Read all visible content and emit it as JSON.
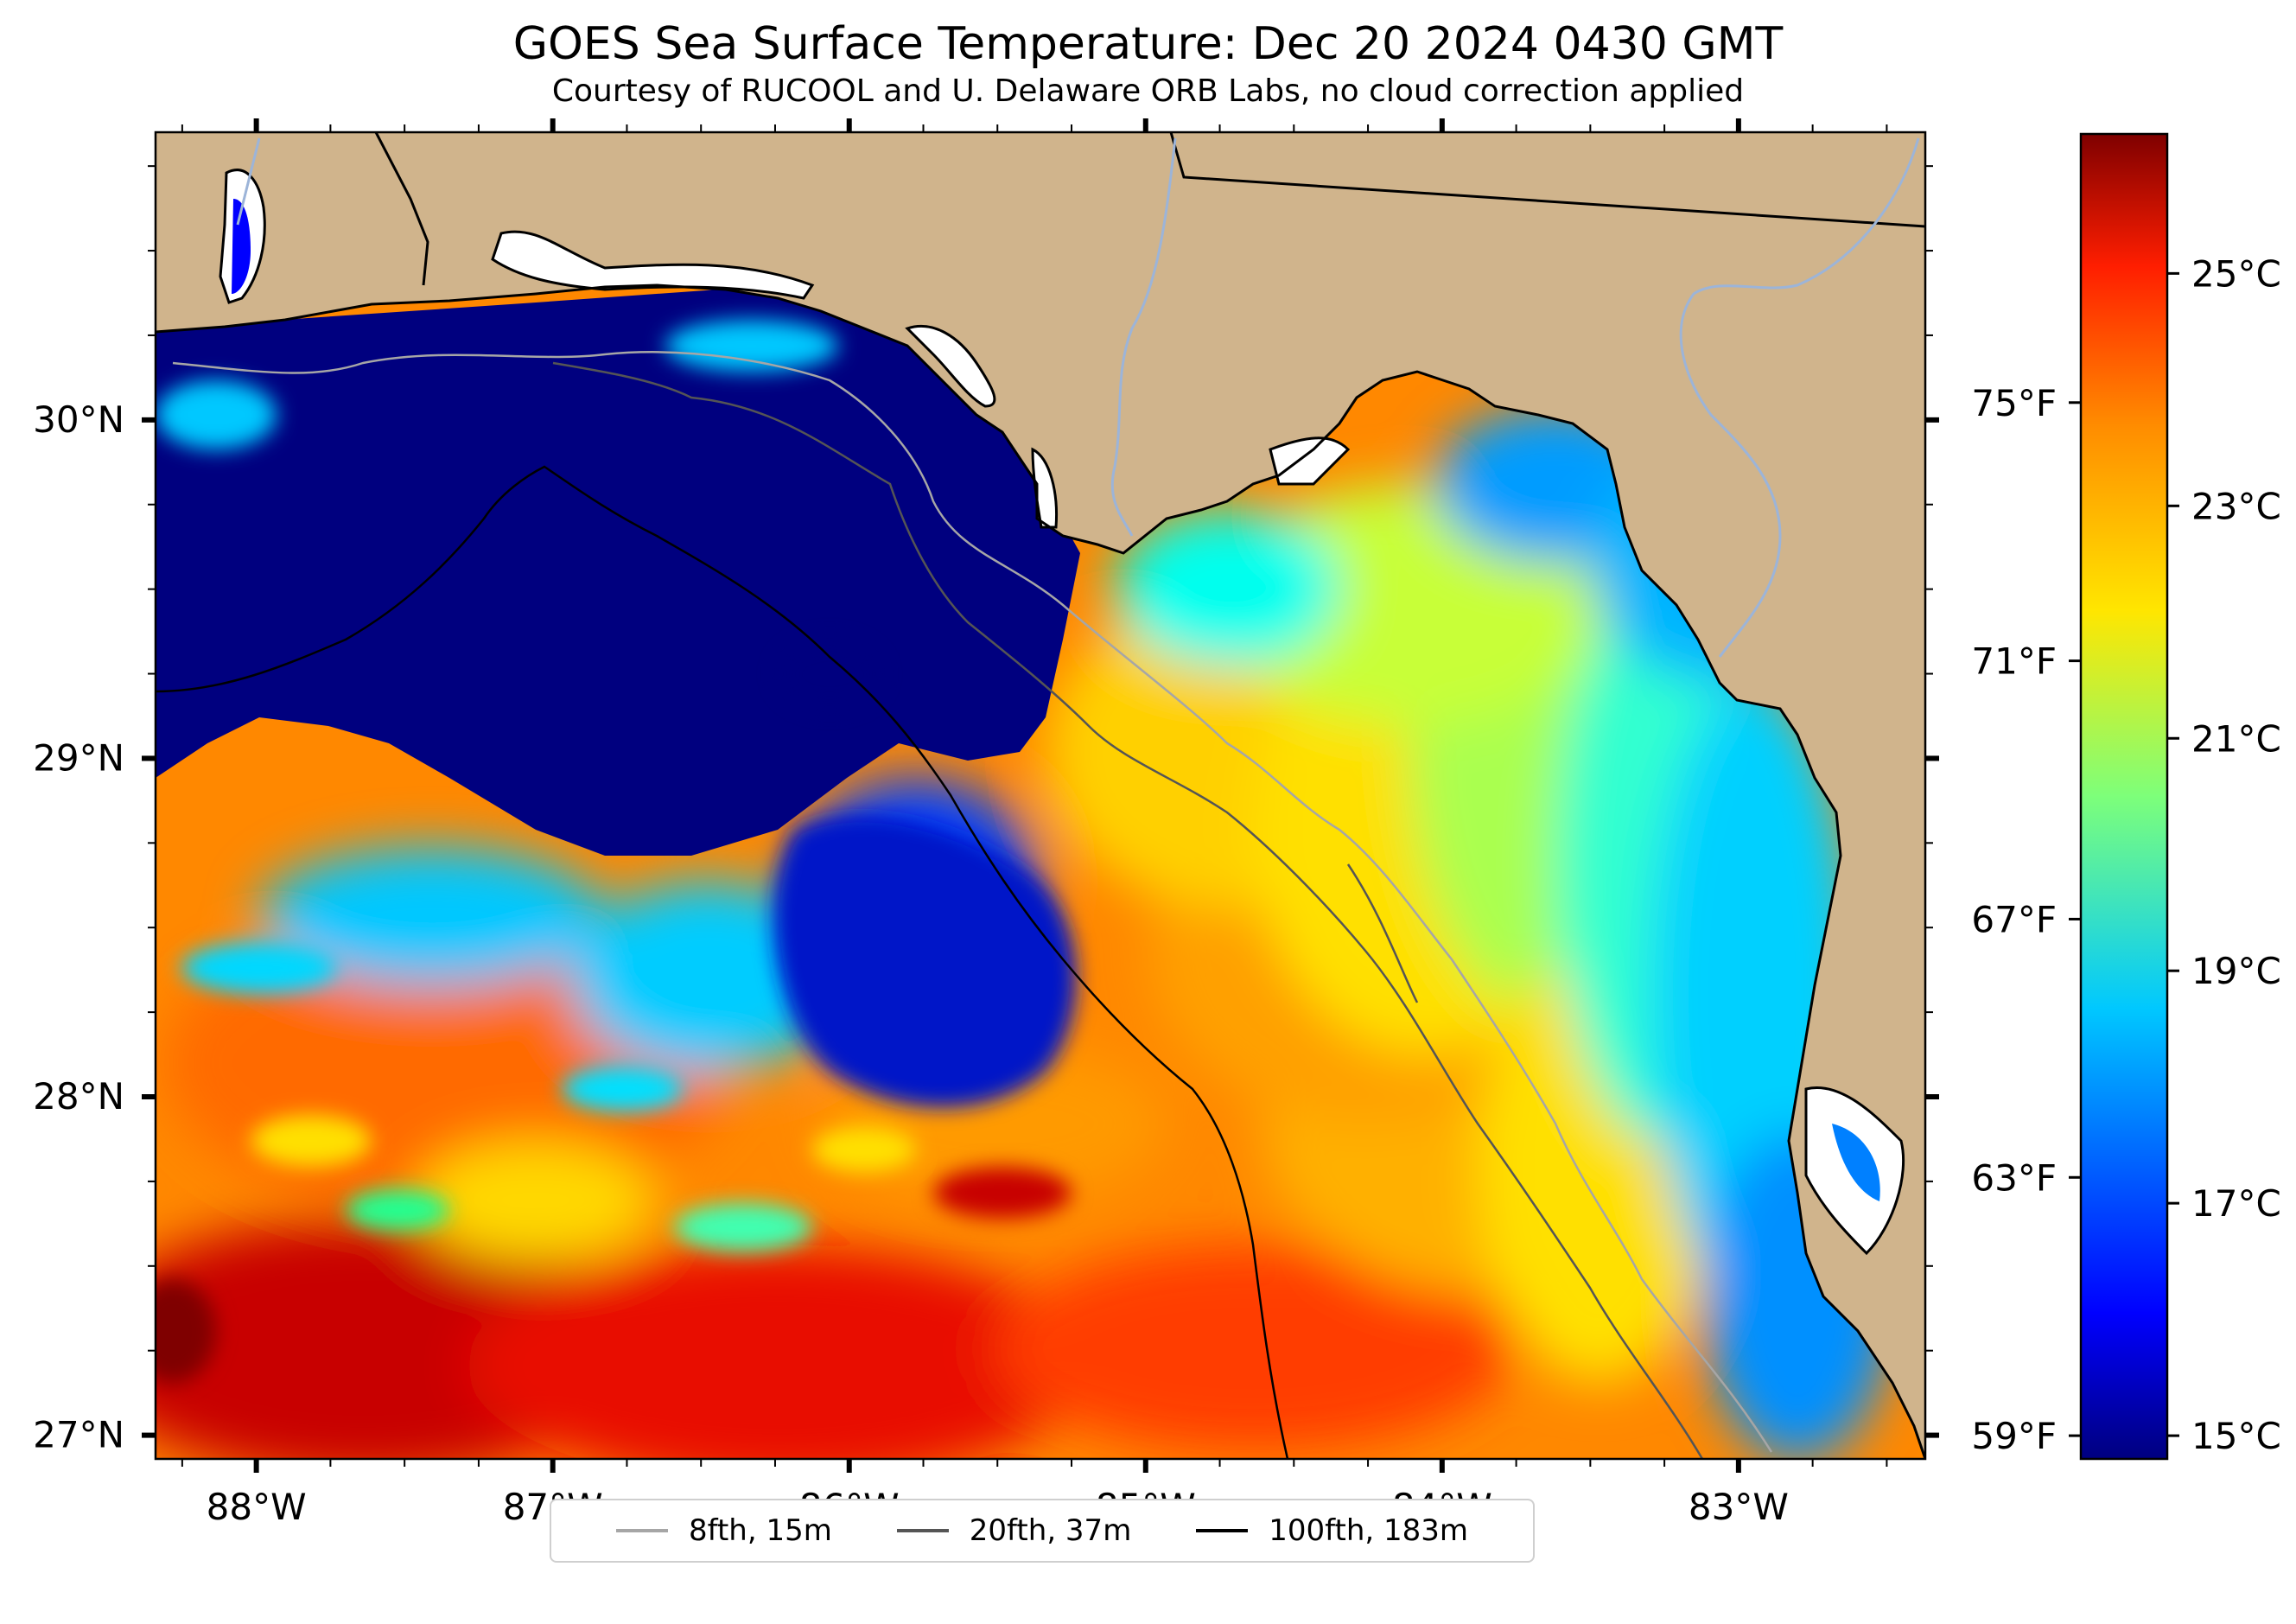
{
  "title": "GOES Sea Surface Temperature: Dec 20 2024 0430 GMT",
  "subtitle": "Courtesy of RUCOOL and U. Delaware ORB Labs, no cloud correction applied",
  "map": {
    "region": "Northeastern Gulf of Mexico (Florida Panhandle / Big Bend)",
    "lon_range": [
      -88.34,
      -82.37
    ],
    "lat_range": [
      26.93,
      30.85
    ],
    "lon_ticks": [
      -88,
      -87,
      -86,
      -85,
      -84,
      -83
    ],
    "lon_tick_labels": [
      "88°W",
      "87°W",
      "86°W",
      "85°W",
      "84°W",
      "83°W"
    ],
    "lat_ticks": [
      27,
      28,
      29,
      30
    ],
    "lat_tick_labels": [
      "27°N",
      "28°N",
      "29°N",
      "30°N"
    ],
    "land_color": "#d0b48c",
    "no_data_color": "#ffffff",
    "coastline_color": "#000000",
    "river_color": "#9cb4d8"
  },
  "colorbar": {
    "colormap": "jet",
    "range_c": [
      14.8,
      26.2
    ],
    "c_ticks": [
      15,
      17,
      19,
      21,
      23,
      25
    ],
    "c_labels": [
      "15°C",
      "17°C",
      "19°C",
      "21°C",
      "23°C",
      "25°C"
    ],
    "f_ticks": [
      59,
      63,
      67,
      71,
      75
    ],
    "f_labels": [
      "59°F",
      "63°F",
      "67°F",
      "71°F",
      "75°F"
    ]
  },
  "legend": {
    "items": [
      {
        "label": "8fth, 15m",
        "color": "#a6a6a6"
      },
      {
        "label": "20fth, 37m",
        "color": "#555555"
      },
      {
        "label": "100fth, 183m",
        "color": "#000000"
      }
    ]
  }
}
